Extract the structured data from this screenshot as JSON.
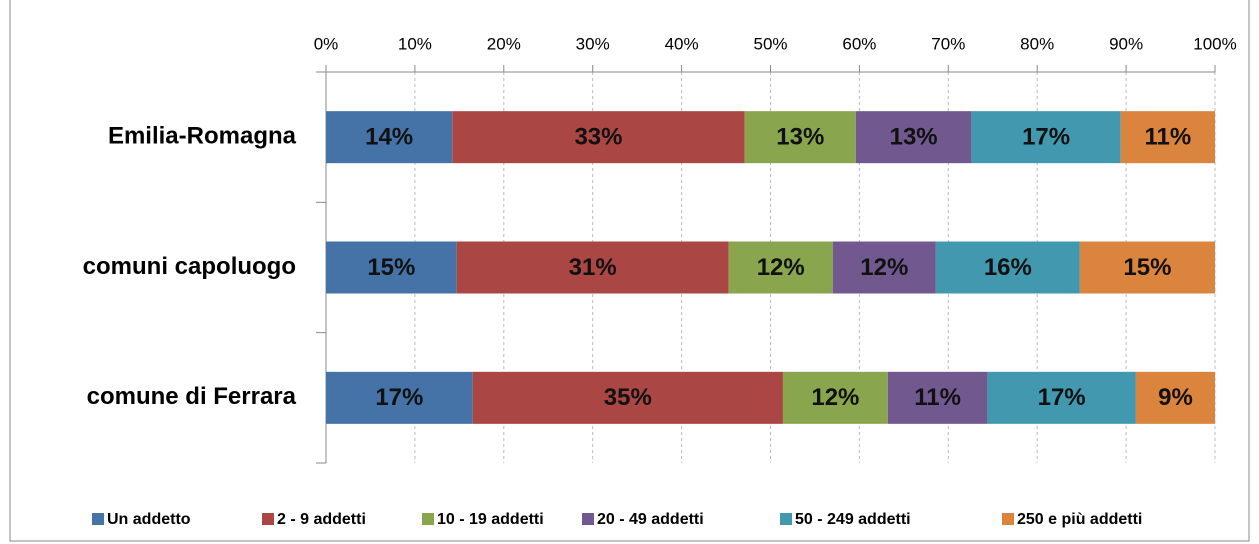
{
  "chart_data": {
    "type": "stacked_barh",
    "categories": [
      "Emilia-Romagna",
      "comuni capoluogo",
      "comune di Ferrara"
    ],
    "series": [
      {
        "name": "Un addetto",
        "color": "#4572a7",
        "values": [
          14.2,
          14.7,
          16.5
        ],
        "value_labels": [
          "14%",
          "15%",
          "17%"
        ]
      },
      {
        "name": "2 - 9 addetti",
        "color": "#aa4643",
        "values": [
          32.9,
          30.6,
          34.9
        ],
        "value_labels": [
          "33%",
          "31%",
          "35%"
        ]
      },
      {
        "name": "10 - 19 addetti",
        "color": "#89a54e",
        "values": [
          12.5,
          11.7,
          11.8
        ],
        "value_labels": [
          "13%",
          "12%",
          "12%"
        ]
      },
      {
        "name": "20 - 49 addetti",
        "color": "#71588f",
        "values": [
          13.0,
          11.6,
          11.2
        ],
        "value_labels": [
          "13%",
          "12%",
          "11%"
        ]
      },
      {
        "name": "50 - 249 addetti",
        "color": "#4198af",
        "values": [
          16.8,
          16.2,
          16.7
        ],
        "value_labels": [
          "17%",
          "16%",
          "17%"
        ]
      },
      {
        "name": "250 e più addetti",
        "color": "#db843d",
        "values": [
          10.6,
          15.2,
          8.9
        ],
        "value_labels": [
          "11%",
          "15%",
          "9%"
        ]
      }
    ],
    "xlim": [
      0,
      100
    ],
    "xticks": [
      {
        "value": 0,
        "label": "0%"
      },
      {
        "value": 10,
        "label": "10%"
      },
      {
        "value": 20,
        "label": "20%"
      },
      {
        "value": 30,
        "label": "30%"
      },
      {
        "value": 40,
        "label": "40%"
      },
      {
        "value": 50,
        "label": "50%"
      },
      {
        "value": 60,
        "label": "60%"
      },
      {
        "value": 70,
        "label": "70%"
      },
      {
        "value": 80,
        "label": "80%"
      },
      {
        "value": 90,
        "label": "90%"
      },
      {
        "value": 100,
        "label": "100%"
      }
    ],
    "grid": true,
    "legend": "bottom"
  }
}
